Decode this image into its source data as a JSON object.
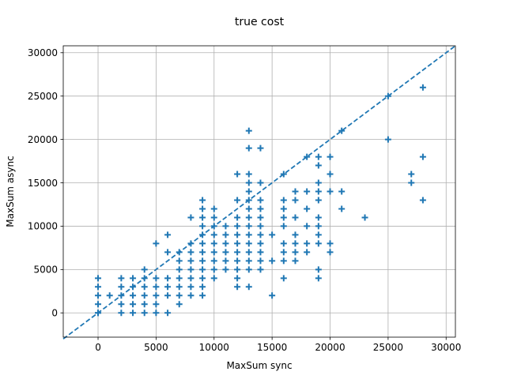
{
  "chart_data": {
    "type": "scatter",
    "title": "true cost",
    "xlabel": "MaxSum sync",
    "ylabel": "MaxSum async",
    "xlim": [
      -3000,
      30800
    ],
    "ylim": [
      -2800,
      30800
    ],
    "xticks": [
      0,
      5000,
      10000,
      15000,
      20000,
      25000,
      30000
    ],
    "yticks": [
      0,
      5000,
      10000,
      15000,
      20000,
      25000,
      30000
    ],
    "grid": true,
    "marker": "plus",
    "color": "#1f77b4",
    "reference_line": {
      "style": "dashed",
      "x": [
        -3000,
        30800
      ],
      "y": [
        -3000,
        30800
      ]
    },
    "series": [
      {
        "points": [
          [
            0,
            0
          ],
          [
            0,
            1000
          ],
          [
            0,
            2000
          ],
          [
            0,
            3000
          ],
          [
            0,
            4000
          ],
          [
            0,
            0
          ],
          [
            1000,
            2000
          ],
          [
            2000,
            0
          ],
          [
            2000,
            1000
          ],
          [
            2000,
            2000
          ],
          [
            2000,
            3000
          ],
          [
            2000,
            4000
          ],
          [
            3000,
            0
          ],
          [
            3000,
            1000
          ],
          [
            3000,
            2000
          ],
          [
            3000,
            3000
          ],
          [
            3000,
            4000
          ],
          [
            4000,
            0
          ],
          [
            4000,
            1000
          ],
          [
            4000,
            2000
          ],
          [
            4000,
            3000
          ],
          [
            4000,
            4000
          ],
          [
            4000,
            5000
          ],
          [
            5000,
            0
          ],
          [
            5000,
            1000
          ],
          [
            5000,
            2000
          ],
          [
            5000,
            3000
          ],
          [
            5000,
            4000
          ],
          [
            5000,
            8000
          ],
          [
            6000,
            0
          ],
          [
            6000,
            2000
          ],
          [
            6000,
            3000
          ],
          [
            6000,
            4000
          ],
          [
            6000,
            7000
          ],
          [
            6000,
            9000
          ],
          [
            7000,
            1000
          ],
          [
            7000,
            2000
          ],
          [
            7000,
            3000
          ],
          [
            7000,
            4000
          ],
          [
            7000,
            5000
          ],
          [
            7000,
            6000
          ],
          [
            7000,
            7000
          ],
          [
            8000,
            2000
          ],
          [
            8000,
            3000
          ],
          [
            8000,
            4000
          ],
          [
            8000,
            5000
          ],
          [
            8000,
            6000
          ],
          [
            8000,
            7000
          ],
          [
            8000,
            8000
          ],
          [
            8000,
            11000
          ],
          [
            9000,
            2000
          ],
          [
            9000,
            3000
          ],
          [
            9000,
            4000
          ],
          [
            9000,
            5000
          ],
          [
            9000,
            6000
          ],
          [
            9000,
            7000
          ],
          [
            9000,
            8000
          ],
          [
            9000,
            9000
          ],
          [
            9000,
            10000
          ],
          [
            9000,
            11000
          ],
          [
            9000,
            12000
          ],
          [
            9000,
            13000
          ],
          [
            10000,
            4000
          ],
          [
            10000,
            5000
          ],
          [
            10000,
            6000
          ],
          [
            10000,
            7000
          ],
          [
            10000,
            8000
          ],
          [
            10000,
            9000
          ],
          [
            10000,
            10000
          ],
          [
            10000,
            11000
          ],
          [
            10000,
            12000
          ],
          [
            11000,
            5000
          ],
          [
            11000,
            6000
          ],
          [
            11000,
            7000
          ],
          [
            11000,
            8000
          ],
          [
            11000,
            9000
          ],
          [
            11000,
            10000
          ],
          [
            12000,
            3000
          ],
          [
            12000,
            4000
          ],
          [
            12000,
            5000
          ],
          [
            12000,
            6000
          ],
          [
            12000,
            7000
          ],
          [
            12000,
            8000
          ],
          [
            12000,
            9000
          ],
          [
            12000,
            10000
          ],
          [
            12000,
            11000
          ],
          [
            12000,
            13000
          ],
          [
            12000,
            16000
          ],
          [
            13000,
            3000
          ],
          [
            13000,
            5000
          ],
          [
            13000,
            6000
          ],
          [
            13000,
            7000
          ],
          [
            13000,
            8000
          ],
          [
            13000,
            9000
          ],
          [
            13000,
            10000
          ],
          [
            13000,
            11000
          ],
          [
            13000,
            12000
          ],
          [
            13000,
            13000
          ],
          [
            13000,
            14000
          ],
          [
            13000,
            15000
          ],
          [
            13000,
            16000
          ],
          [
            13000,
            19000
          ],
          [
            13000,
            21000
          ],
          [
            14000,
            5000
          ],
          [
            14000,
            6000
          ],
          [
            14000,
            7000
          ],
          [
            14000,
            8000
          ],
          [
            14000,
            9000
          ],
          [
            14000,
            10000
          ],
          [
            14000,
            11000
          ],
          [
            14000,
            12000
          ],
          [
            14000,
            13000
          ],
          [
            14000,
            15000
          ],
          [
            14000,
            19000
          ],
          [
            15000,
            2000
          ],
          [
            15000,
            6000
          ],
          [
            15000,
            9000
          ],
          [
            16000,
            4000
          ],
          [
            16000,
            6000
          ],
          [
            16000,
            7000
          ],
          [
            16000,
            8000
          ],
          [
            16000,
            10000
          ],
          [
            16000,
            11000
          ],
          [
            16000,
            12000
          ],
          [
            16000,
            13000
          ],
          [
            16000,
            16000
          ],
          [
            17000,
            6000
          ],
          [
            17000,
            7000
          ],
          [
            17000,
            8000
          ],
          [
            17000,
            9000
          ],
          [
            17000,
            11000
          ],
          [
            17000,
            13000
          ],
          [
            17000,
            14000
          ],
          [
            18000,
            7000
          ],
          [
            18000,
            8000
          ],
          [
            18000,
            10000
          ],
          [
            18000,
            12000
          ],
          [
            18000,
            14000
          ],
          [
            18000,
            18000
          ],
          [
            19000,
            4000
          ],
          [
            19000,
            5000
          ],
          [
            19000,
            8000
          ],
          [
            19000,
            9000
          ],
          [
            19000,
            10000
          ],
          [
            19000,
            11000
          ],
          [
            19000,
            13000
          ],
          [
            19000,
            14000
          ],
          [
            19000,
            15000
          ],
          [
            19000,
            17000
          ],
          [
            19000,
            18000
          ],
          [
            20000,
            7000
          ],
          [
            20000,
            8000
          ],
          [
            20000,
            14000
          ],
          [
            20000,
            16000
          ],
          [
            20000,
            18000
          ],
          [
            21000,
            12000
          ],
          [
            21000,
            14000
          ],
          [
            21000,
            21000
          ],
          [
            23000,
            11000
          ],
          [
            25000,
            20000
          ],
          [
            25000,
            25000
          ],
          [
            27000,
            15000
          ],
          [
            27000,
            16000
          ],
          [
            28000,
            13000
          ],
          [
            28000,
            18000
          ],
          [
            28000,
            26000
          ]
        ]
      }
    ]
  }
}
